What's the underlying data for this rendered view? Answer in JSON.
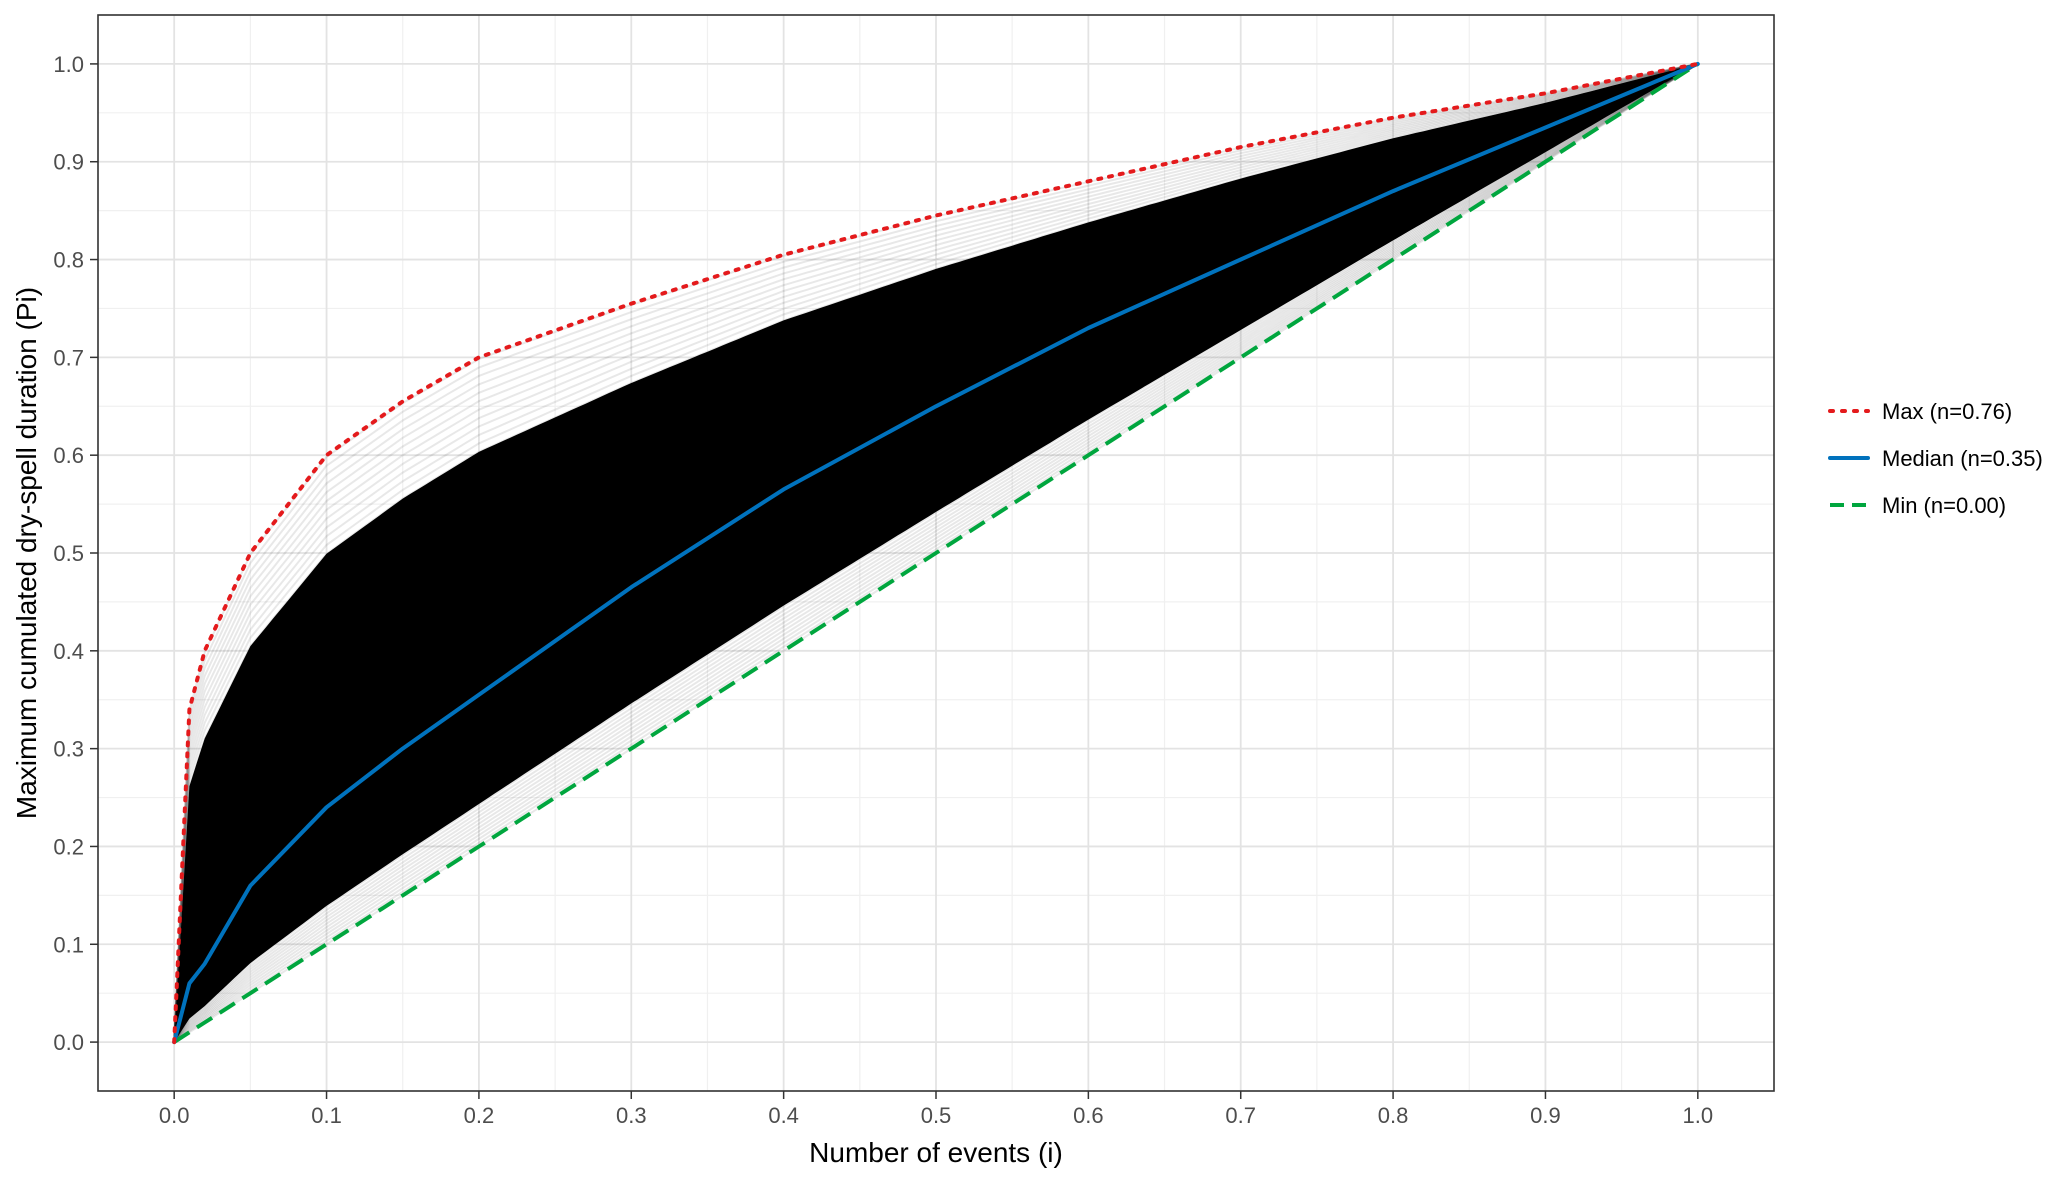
{
  "chart_data": {
    "type": "line",
    "xlabel": "Number of events (i)",
    "ylabel": "Maximum cumulated dry-spell duration (Pi)",
    "xlim": [
      -0.05,
      1.05
    ],
    "ylim": [
      -0.05,
      1.05
    ],
    "x_ticks": [
      "0.0",
      "0.1",
      "0.2",
      "0.3",
      "0.4",
      "0.5",
      "0.6",
      "0.7",
      "0.8",
      "0.9",
      "1.0"
    ],
    "y_ticks": [
      "0.0",
      "0.1",
      "0.2",
      "0.3",
      "0.4",
      "0.5",
      "0.6",
      "0.7",
      "0.8",
      "0.9",
      "1.0"
    ],
    "grid": true,
    "legend_position": "right",
    "x": [
      0.0,
      0.01,
      0.02,
      0.05,
      0.1,
      0.15,
      0.2,
      0.3,
      0.4,
      0.5,
      0.6,
      0.7,
      0.8,
      0.9,
      1.0
    ],
    "series": [
      {
        "name": "Max (n=0.76)",
        "color": "#e41a1c",
        "linestyle": "dotted",
        "values": [
          0.0,
          0.34,
          0.4,
          0.5,
          0.6,
          0.655,
          0.7,
          0.755,
          0.805,
          0.845,
          0.88,
          0.915,
          0.945,
          0.97,
          1.0
        ]
      },
      {
        "name": "Median (n=0.35)",
        "color": "#0072bd",
        "linestyle": "solid",
        "values": [
          0.0,
          0.06,
          0.08,
          0.16,
          0.24,
          0.3,
          0.355,
          0.465,
          0.565,
          0.65,
          0.73,
          0.8,
          0.87,
          0.935,
          1.0
        ]
      },
      {
        "name": "Min (n=0.00)",
        "color": "#00a63e",
        "linestyle": "dashed",
        "values": [
          0.0,
          0.01,
          0.02,
          0.05,
          0.1,
          0.15,
          0.2,
          0.3,
          0.4,
          0.5,
          0.6,
          0.7,
          0.8,
          0.9,
          1.0
        ]
      }
    ]
  }
}
